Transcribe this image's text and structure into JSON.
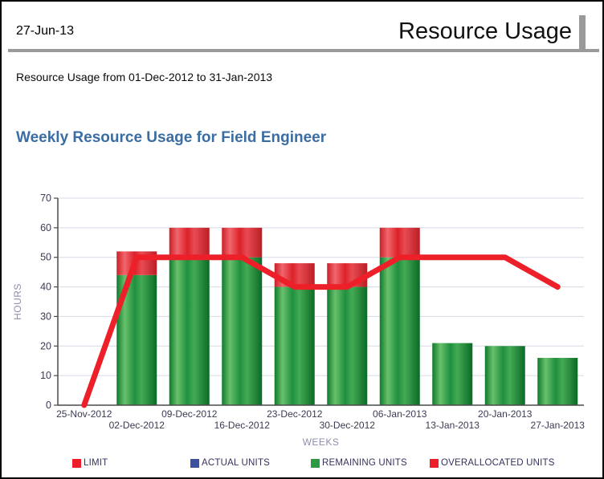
{
  "page": {
    "header": {
      "date": "27-Jun-13",
      "title": "Resource Usage"
    },
    "subtitle": "Resource Usage from 01-Dec-2012 to 31-Jan-2013",
    "chart_title": "Weekly Resource Usage for Field Engineer"
  },
  "colors": {
    "title_blue": "#3a6da4",
    "header_rule_gray": "#9a9a9a",
    "tick_label": "#3a3a52",
    "axis_label": "#8d8dad",
    "gridline": "#d8d8e4",
    "axis_line": "#4a4a4a",
    "green_gradient": [
      {
        "o": 0,
        "c": "#0d7a2c"
      },
      {
        "o": 0.2,
        "c": "#68c06b"
      },
      {
        "o": 0.45,
        "c": "#1f9040"
      },
      {
        "o": 0.62,
        "c": "#44aa54"
      },
      {
        "o": 1,
        "c": "#0a6a26"
      }
    ],
    "red_gradient": [
      {
        "o": 0,
        "c": "#c92026"
      },
      {
        "o": 0.2,
        "c": "#f1666d"
      },
      {
        "o": 0.45,
        "c": "#dc2129"
      },
      {
        "o": 0.62,
        "c": "#e84b53"
      },
      {
        "o": 1,
        "c": "#bb1d24"
      }
    ]
  },
  "chart_data": {
    "type": "bar",
    "subtype": "stacked-bars-with-line",
    "title": "Weekly Resource Usage for Field Engineer",
    "xlabel": "WEEKS",
    "ylabel": "HOURS",
    "ylim": [
      0,
      70
    ],
    "ytick_step": 10,
    "grid": true,
    "legend_position": "bottom",
    "categories": [
      "25-Nov-2012",
      "02-Dec-2012",
      "09-Dec-2012",
      "16-Dec-2012",
      "23-Dec-2012",
      "30-Dec-2012",
      "06-Jan-2013",
      "13-Jan-2013",
      "20-Jan-2013",
      "27-Jan-2013"
    ],
    "series": [
      {
        "name": "LIMIT",
        "type": "line",
        "color": "#ed1f28",
        "values": [
          0,
          50,
          50,
          50,
          40,
          40,
          50,
          50,
          50,
          40
        ]
      },
      {
        "name": "ACTUAL UNITS",
        "type": "bar",
        "color": "#3c52a0",
        "values": [
          0,
          0,
          0,
          0,
          0,
          0,
          0,
          0,
          0,
          0
        ]
      },
      {
        "name": "REMAINING UNITS",
        "type": "bar",
        "color": "#2c9a41",
        "values": [
          0,
          44,
          50,
          50,
          40,
          40,
          50,
          21,
          20,
          16
        ]
      },
      {
        "name": "OVERALLOCATED UNITS",
        "type": "bar",
        "color": "#ed1f28",
        "values": [
          0,
          8,
          10,
          10,
          8,
          8,
          10,
          0,
          0,
          0
        ]
      }
    ],
    "legend": [
      "LIMIT",
      "ACTUAL UNITS",
      "REMAINING UNITS",
      "OVERALLOCATED UNITS"
    ]
  }
}
